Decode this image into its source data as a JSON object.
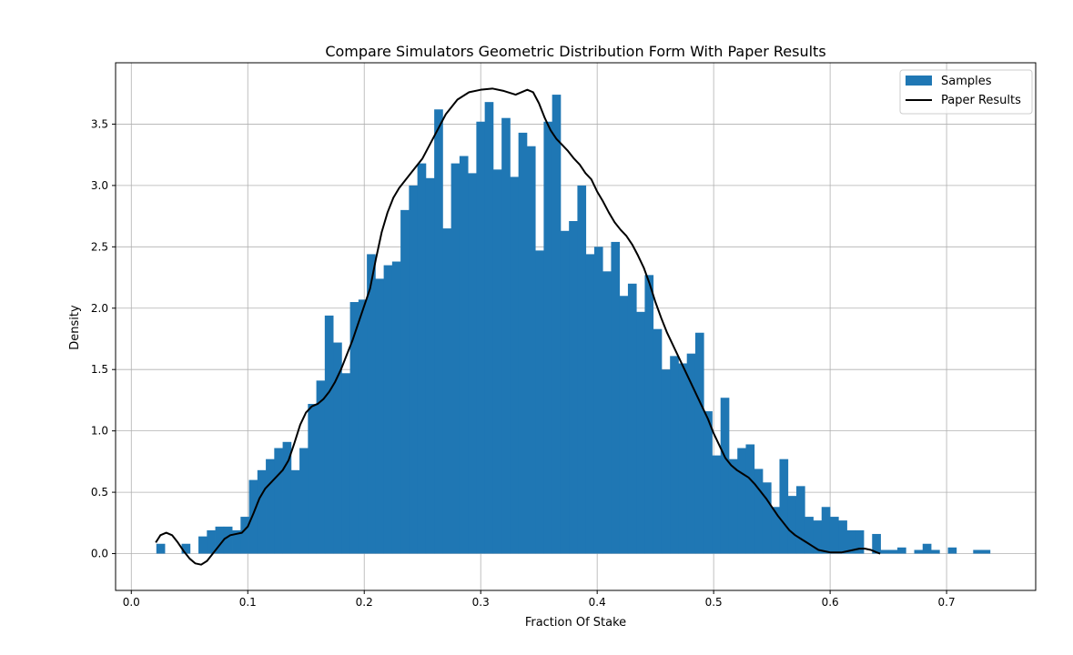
{
  "chart_data": {
    "type": "histogram",
    "title": "Compare Simulators Geometric Distribution Form With Paper Results",
    "xlabel": "Fraction Of Stake",
    "ylabel": "Density",
    "xlim": [
      -0.0135,
      0.7765
    ],
    "ylim": [
      -0.3,
      4.0
    ],
    "xticks": [
      0.0,
      0.1,
      0.2,
      0.3,
      0.4,
      0.5,
      0.6,
      0.7
    ],
    "xtick_labels": [
      "0.0",
      "0.1",
      "0.2",
      "0.3",
      "0.4",
      "0.5",
      "0.6",
      "0.7"
    ],
    "yticks": [
      0.0,
      0.5,
      1.0,
      1.5,
      2.0,
      2.5,
      3.0,
      3.5
    ],
    "ytick_labels": [
      "0.0",
      "0.5",
      "1.0",
      "1.5",
      "2.0",
      "2.5",
      "3.0",
      "3.5"
    ],
    "grid": true,
    "legend_position": "top-right",
    "bar_color": "#1f77b4",
    "line_color": "#000000",
    "bins": {
      "start": 0.0215,
      "width": 0.00723,
      "values": [
        0.08,
        0.0,
        0.0,
        0.08,
        0.0,
        0.14,
        0.19,
        0.22,
        0.22,
        0.19,
        0.3,
        0.6,
        0.68,
        0.77,
        0.86,
        0.91,
        0.68,
        0.86,
        1.22,
        1.41,
        1.94,
        1.72,
        1.47,
        2.05,
        2.07,
        2.44,
        2.24,
        2.35,
        2.38,
        2.8,
        3.0,
        3.18,
        3.06,
        3.62,
        2.65,
        3.18,
        3.24,
        3.1,
        3.52,
        3.68,
        3.13,
        3.55,
        3.07,
        3.43,
        3.32,
        2.47,
        3.52,
        3.74,
        2.63,
        2.71,
        3.0,
        2.44,
        2.5,
        2.3,
        2.54,
        2.1,
        2.2,
        1.97,
        2.27,
        1.83,
        1.5,
        1.61,
        1.55,
        1.63,
        1.8,
        1.16,
        0.8,
        1.27,
        0.77,
        0.86,
        0.89,
        0.69,
        0.58,
        0.38,
        0.77,
        0.47,
        0.55,
        0.3,
        0.27,
        0.38,
        0.3,
        0.27,
        0.19,
        0.19,
        0.0,
        0.16,
        0.03,
        0.03,
        0.05,
        0.0,
        0.03,
        0.08,
        0.03,
        0.0,
        0.05,
        0.0,
        0.0,
        0.03,
        0.03
      ]
    },
    "series": [
      {
        "name": "Samples",
        "kind": "bar"
      },
      {
        "name": "Paper Results",
        "kind": "line",
        "x": [
          0.021,
          0.025,
          0.03,
          0.035,
          0.04,
          0.045,
          0.05,
          0.055,
          0.06,
          0.065,
          0.07,
          0.075,
          0.08,
          0.085,
          0.09,
          0.095,
          0.1,
          0.105,
          0.11,
          0.115,
          0.12,
          0.125,
          0.13,
          0.135,
          0.14,
          0.145,
          0.15,
          0.155,
          0.16,
          0.165,
          0.17,
          0.175,
          0.18,
          0.185,
          0.19,
          0.195,
          0.2,
          0.205,
          0.21,
          0.215,
          0.22,
          0.225,
          0.23,
          0.24,
          0.25,
          0.26,
          0.27,
          0.28,
          0.29,
          0.3,
          0.31,
          0.32,
          0.33,
          0.34,
          0.345,
          0.35,
          0.355,
          0.36,
          0.365,
          0.37,
          0.375,
          0.38,
          0.385,
          0.39,
          0.395,
          0.4,
          0.405,
          0.41,
          0.415,
          0.42,
          0.425,
          0.43,
          0.435,
          0.44,
          0.445,
          0.45,
          0.455,
          0.46,
          0.465,
          0.47,
          0.475,
          0.48,
          0.485,
          0.49,
          0.495,
          0.5,
          0.505,
          0.51,
          0.515,
          0.52,
          0.525,
          0.53,
          0.535,
          0.54,
          0.545,
          0.55,
          0.555,
          0.56,
          0.565,
          0.57,
          0.575,
          0.58,
          0.585,
          0.59,
          0.595,
          0.6,
          0.605,
          0.61,
          0.615,
          0.62,
          0.625,
          0.63,
          0.635,
          0.64,
          0.643
        ],
        "y": [
          0.09,
          0.15,
          0.17,
          0.15,
          0.09,
          0.02,
          -0.04,
          -0.08,
          -0.09,
          -0.06,
          0.0,
          0.06,
          0.12,
          0.15,
          0.16,
          0.17,
          0.22,
          0.33,
          0.45,
          0.53,
          0.58,
          0.63,
          0.68,
          0.76,
          0.9,
          1.05,
          1.15,
          1.2,
          1.22,
          1.26,
          1.32,
          1.4,
          1.5,
          1.62,
          1.74,
          1.88,
          2.02,
          2.16,
          2.4,
          2.62,
          2.78,
          2.9,
          2.98,
          3.1,
          3.22,
          3.4,
          3.58,
          3.7,
          3.76,
          3.78,
          3.79,
          3.77,
          3.74,
          3.78,
          3.76,
          3.67,
          3.55,
          3.45,
          3.38,
          3.33,
          3.28,
          3.22,
          3.17,
          3.1,
          3.05,
          2.95,
          2.87,
          2.78,
          2.7,
          2.64,
          2.59,
          2.52,
          2.43,
          2.33,
          2.2,
          2.05,
          1.92,
          1.8,
          1.7,
          1.6,
          1.5,
          1.4,
          1.3,
          1.2,
          1.1,
          0.98,
          0.88,
          0.78,
          0.72,
          0.68,
          0.65,
          0.62,
          0.57,
          0.51,
          0.45,
          0.38,
          0.31,
          0.25,
          0.19,
          0.15,
          0.12,
          0.09,
          0.06,
          0.03,
          0.02,
          0.01,
          0.01,
          0.01,
          0.02,
          0.03,
          0.04,
          0.04,
          0.03,
          0.01,
          0.0
        ]
      }
    ]
  }
}
